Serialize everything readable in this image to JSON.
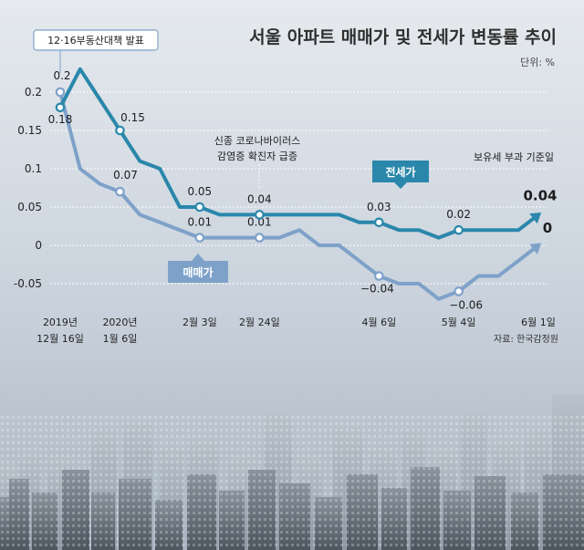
{
  "header": {
    "title": "서울 아파트 매매가 및 전세가 변동률 추이",
    "unit": "단위: %",
    "source": "자료: 한국감정원"
  },
  "annotations": {
    "policy": "12·16부동산대책 발표",
    "corona_line1": "신종 코로나바이러스",
    "corona_line2": "감염증 확진자 급증",
    "tax_date": "보유세 부과 기준일"
  },
  "series_tags": {
    "jeonse": "전세가",
    "sale": "매매가"
  },
  "colors": {
    "jeonse": "#2a87ab",
    "sale": "#7ea1c9",
    "background": "#dde3ea",
    "policy_box_border": "#7ea1c9"
  },
  "chart_data": {
    "type": "line",
    "x": [
      "2019-12-16",
      "2019-12-23",
      "2019-12-30",
      "2020-01-06",
      "2020-01-13",
      "2020-01-20",
      "2020-01-27",
      "2020-02-03",
      "2020-02-10",
      "2020-02-17",
      "2020-02-24",
      "2020-03-02",
      "2020-03-09",
      "2020-03-16",
      "2020-03-23",
      "2020-03-30",
      "2020-04-06",
      "2020-04-13",
      "2020-04-20",
      "2020-04-27",
      "2020-05-04",
      "2020-05-11",
      "2020-05-18",
      "2020-05-25",
      "2020-06-01"
    ],
    "x_tick_labels": [
      {
        "x": "2019-12-16",
        "line1": "2019년",
        "line2": "12월 16일"
      },
      {
        "x": "2020-01-06",
        "line1": "2020년",
        "line2": "1월 6일"
      },
      {
        "x": "2020-02-03",
        "line1": "2월 3일",
        "line2": ""
      },
      {
        "x": "2020-02-24",
        "line1": "2월 24일",
        "line2": ""
      },
      {
        "x": "2020-04-06",
        "line1": "4월 6일",
        "line2": ""
      },
      {
        "x": "2020-05-04",
        "line1": "5월 4일",
        "line2": ""
      },
      {
        "x": "2020-06-01",
        "line1": "6월 1일",
        "line2": ""
      }
    ],
    "series": [
      {
        "name": "전세가",
        "values": [
          0.18,
          0.23,
          0.19,
          0.15,
          0.11,
          0.1,
          0.05,
          0.05,
          0.04,
          0.04,
          0.04,
          0.04,
          0.04,
          0.04,
          0.04,
          0.03,
          0.03,
          0.02,
          0.02,
          0.01,
          0.02,
          0.02,
          0.02,
          0.02,
          0.04
        ],
        "labels": [
          {
            "x": "2019-12-16",
            "text": "0.18"
          },
          {
            "x": "2020-01-06",
            "text": "0.15"
          },
          {
            "x": "2020-02-03",
            "text": "0.05"
          },
          {
            "x": "2020-02-24",
            "text": "0.04"
          },
          {
            "x": "2020-04-06",
            "text": "0.03"
          },
          {
            "x": "2020-05-04",
            "text": "0.02"
          },
          {
            "x": "2020-06-01",
            "text": "0.04"
          }
        ]
      },
      {
        "name": "매매가",
        "values": [
          0.2,
          0.1,
          0.08,
          0.07,
          0.04,
          0.03,
          0.02,
          0.01,
          0.01,
          0.01,
          0.01,
          0.01,
          0.02,
          0.0,
          0.0,
          -0.02,
          -0.04,
          -0.05,
          -0.05,
          -0.07,
          -0.06,
          -0.04,
          -0.04,
          -0.02,
          0.0
        ],
        "labels": [
          {
            "x": "2019-12-16",
            "text": "0.2"
          },
          {
            "x": "2020-01-06",
            "text": "0.07"
          },
          {
            "x": "2020-02-03",
            "text": "0.01"
          },
          {
            "x": "2020-02-24",
            "text": "0.01"
          },
          {
            "x": "2020-04-06",
            "text": "−0.04"
          },
          {
            "x": "2020-05-04",
            "text": "−0.06"
          },
          {
            "x": "2020-06-01",
            "text": "0"
          }
        ]
      }
    ],
    "y_ticks": [
      "0.2",
      "0.15",
      "0.1",
      "0.05",
      "0",
      "-0.05"
    ],
    "ylim": [
      -0.08,
      0.24
    ],
    "grid": true,
    "title": "서울 아파트 매매가 및 전세가 변동률 추이"
  }
}
